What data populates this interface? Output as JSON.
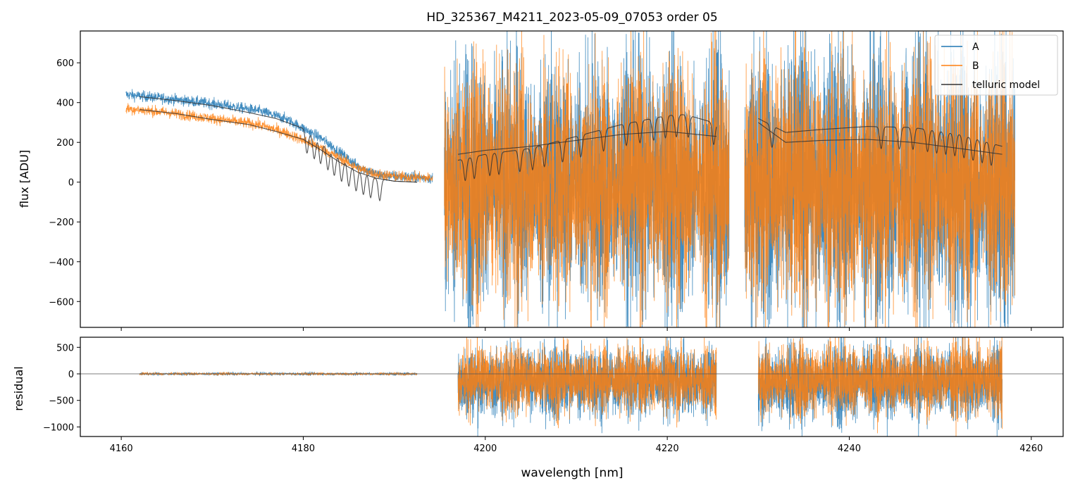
{
  "chart_data": [
    {
      "type": "line",
      "panel": "flux",
      "title": "HD_325367_M4211_2023-05-09_07053  order 05",
      "xlabel": "",
      "ylabel": "flux [ADU]",
      "xlim": [
        4155.5,
        4263.5
      ],
      "ylim": [
        -730,
        760
      ],
      "yticks": [
        600,
        400,
        200,
        0,
        -200,
        -400,
        -600
      ],
      "yticklabels": [
        "600",
        "400",
        "200",
        "0",
        "−200",
        "−400",
        "−600"
      ],
      "xticks": [
        4160,
        4180,
        4200,
        4220,
        4240,
        4260
      ],
      "legend": {
        "placement": "top-right",
        "entries": [
          "A",
          "B",
          "telluric model"
        ]
      },
      "series": [
        {
          "name": "A",
          "color": "#1f77b4",
          "segments": [
            {
              "x_range": [
                4160.5,
                4194.2
              ],
              "envelope": [
                [
                  4160.5,
                  440
                ],
                [
                  4165,
                  420
                ],
                [
                  4170,
                  395
                ],
                [
                  4175,
                  360
                ],
                [
                  4178,
                  320
                ],
                [
                  4180,
                  270
                ],
                [
                  4182,
                  220
                ],
                [
                  4184,
                  150
                ],
                [
                  4186,
                  80
                ],
                [
                  4188,
                  40
                ],
                [
                  4190,
                  30
                ],
                [
                  4192,
                  25
                ],
                [
                  4194,
                  20
                ]
              ],
              "noise_amplitude": 30
            },
            {
              "x_range": [
                4195.5,
                4226.8
              ],
              "center": 0,
              "noise_amplitude": 650
            },
            {
              "x_range": [
                4228.5,
                4258.2
              ],
              "center": 0,
              "noise_amplitude": 700
            }
          ]
        },
        {
          "name": "B",
          "color": "#ff7f0e",
          "segments": [
            {
              "x_range": [
                4160.5,
                4194.2
              ],
              "envelope": [
                [
                  4160.5,
                  370
                ],
                [
                  4165,
                  350
                ],
                [
                  4170,
                  320
                ],
                [
                  4175,
                  290
                ],
                [
                  4178,
                  250
                ],
                [
                  4180,
                  210
                ],
                [
                  4182,
                  170
                ],
                [
                  4184,
                  120
                ],
                [
                  4186,
                  70
                ],
                [
                  4188,
                  40
                ],
                [
                  4190,
                  30
                ],
                [
                  4192,
                  25
                ],
                [
                  4194,
                  20
                ]
              ],
              "noise_amplitude": 30
            },
            {
              "x_range": [
                4195.5,
                4226.8
              ],
              "center": 0,
              "noise_amplitude": 600
            },
            {
              "x_range": [
                4228.5,
                4258.2
              ],
              "center": 0,
              "noise_amplitude": 650
            }
          ]
        },
        {
          "name": "telluric model",
          "color": "#333333",
          "segments": [
            {
              "points": [
                [
                  4162,
                  430
                ],
                [
                  4166,
                  410
                ],
                [
                  4170,
                  385
                ],
                [
                  4174,
                  350
                ],
                [
                  4177,
                  320
                ],
                [
                  4180,
                  270
                ],
                [
                  4182,
                  200
                ],
                [
                  4184,
                  120
                ],
                [
                  4186,
                  60
                ],
                [
                  4188,
                  20
                ],
                [
                  4190,
                  5
                ],
                [
                  4192.5,
                  0
                ]
              ],
              "absorption_lines": [
                4180.4,
                4181.2,
                4181.9,
                4182.7,
                4183.4,
                4184.2,
                4185,
                4185.8,
                4186.6,
                4187.4,
                4188.4
              ]
            },
            {
              "points": [
                [
                  4162,
                  365
                ],
                [
                  4166,
                  345
                ],
                [
                  4170,
                  315
                ],
                [
                  4174,
                  290
                ],
                [
                  4177,
                  255
                ],
                [
                  4180,
                  215
                ],
                [
                  4182,
                  160
                ],
                [
                  4184,
                  100
                ],
                [
                  4186,
                  50
                ],
                [
                  4188,
                  20
                ],
                [
                  4190,
                  5
                ],
                [
                  4192.5,
                  0
                ]
              ],
              "absorption_lines": []
            },
            {
              "points": [
                [
                  4197,
                  110
                ],
                [
                  4200,
                  140
                ],
                [
                  4205,
                  170
                ],
                [
                  4210,
                  230
                ],
                [
                  4215,
                  290
                ],
                [
                  4220,
                  335
                ],
                [
                  4222,
                  340
                ],
                [
                  4225.4,
                  295
                ]
              ],
              "absorption_lines": [
                4197.8,
                4198.8,
                4200.5,
                4201.5,
                4203.8,
                4205.2,
                4206.5,
                4208.5,
                4210.5,
                4213,
                4215.5,
                4217,
                4218.5,
                4219.8,
                4221,
                4222.3,
                4225.1
              ]
            },
            {
              "points": [
                [
                  4197,
                  140
                ],
                [
                  4200,
                  160
                ],
                [
                  4205,
                  180
                ],
                [
                  4210,
                  210
                ],
                [
                  4215,
                  240
                ],
                [
                  4220,
                  255
                ],
                [
                  4225.4,
                  230
                ]
              ],
              "absorption_lines": []
            },
            {
              "points": [
                [
                  4230,
                  320
                ],
                [
                  4233,
                  250
                ],
                [
                  4237,
                  265
                ],
                [
                  4242,
                  280
                ],
                [
                  4247,
                  275
                ],
                [
                  4252,
                  240
                ],
                [
                  4256.8,
                  180
                ]
              ],
              "absorption_lines": [
                4231.5,
                4243.5,
                4245.5,
                4247,
                4248.6,
                4249.6,
                4250.6,
                4251.6,
                4252.6,
                4253.6,
                4254.6,
                4255.6
              ]
            },
            {
              "points": [
                [
                  4230,
                  300
                ],
                [
                  4233,
                  200
                ],
                [
                  4237,
                  210
                ],
                [
                  4242,
                  215
                ],
                [
                  4247,
                  200
                ],
                [
                  4252,
                  170
                ],
                [
                  4256.8,
                  140
                ]
              ],
              "absorption_lines": []
            }
          ]
        }
      ]
    },
    {
      "type": "line",
      "panel": "residual",
      "title": "",
      "xlabel": "wavelength [nm]",
      "ylabel": "residual",
      "xlim": [
        4155.5,
        4263.5
      ],
      "ylim": [
        -1180,
        690
      ],
      "yticks": [
        500,
        0,
        -500,
        -1000
      ],
      "yticklabels": [
        "500",
        "0",
        "−500",
        "−1000"
      ],
      "xticks": [
        4160,
        4180,
        4200,
        4220,
        4240,
        4260
      ],
      "xticklabels": [
        "4160",
        "4180",
        "4200",
        "4220",
        "4240",
        "4260"
      ],
      "zero_line": true,
      "series": [
        {
          "name": "A",
          "color": "#1f77b4",
          "segments": [
            {
              "x_range": [
                4162,
                4192.5
              ],
              "center": 0,
              "noise_amplitude": 30
            },
            {
              "x_range": [
                4197,
                4225.4
              ],
              "center": -150,
              "noise_amplitude": 700
            },
            {
              "x_range": [
                4230,
                4256.8
              ],
              "center": -150,
              "noise_amplitude": 750
            }
          ]
        },
        {
          "name": "B",
          "color": "#ff7f0e",
          "segments": [
            {
              "x_range": [
                4162,
                4192.5
              ],
              "center": 0,
              "noise_amplitude": 25
            },
            {
              "x_range": [
                4197,
                4225.4
              ],
              "center": -100,
              "noise_amplitude": 650
            },
            {
              "x_range": [
                4230,
                4256.8
              ],
              "center": -100,
              "noise_amplitude": 700
            }
          ]
        }
      ]
    }
  ]
}
